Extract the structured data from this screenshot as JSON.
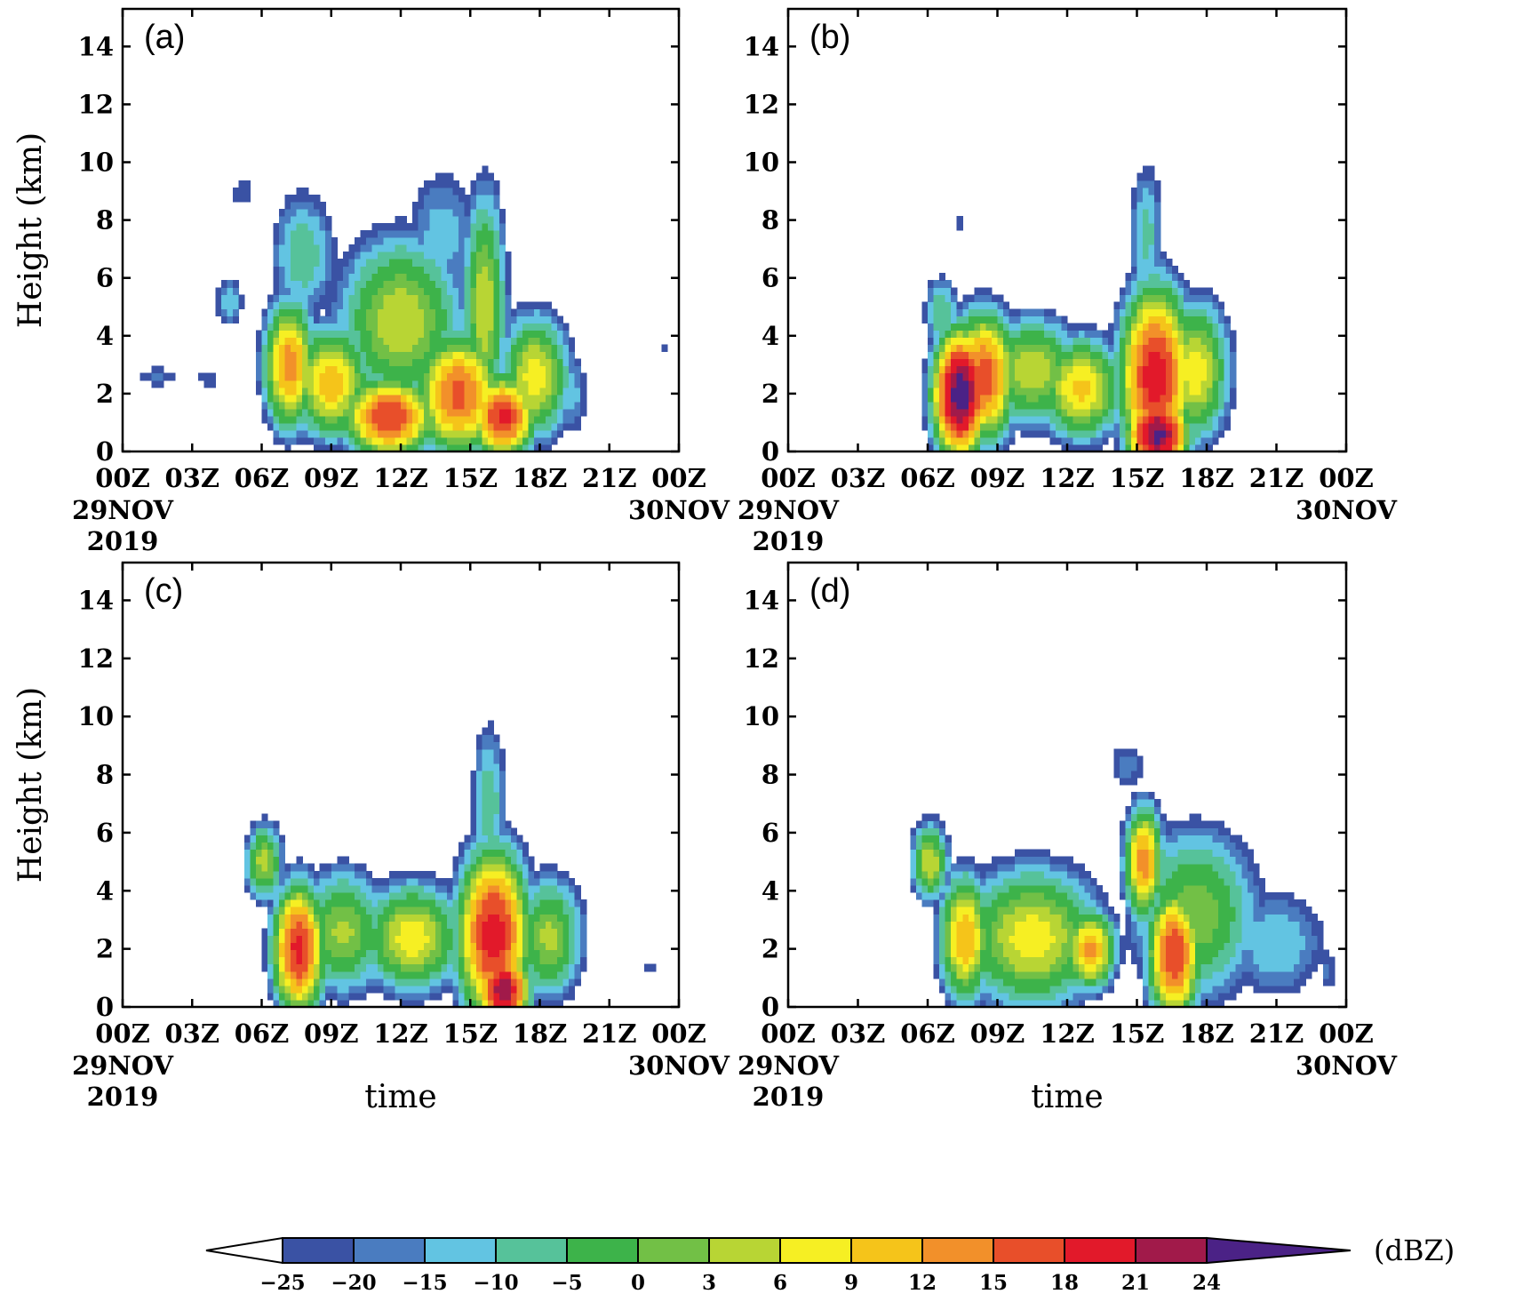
{
  "colors": {
    "levels": [
      "#3a52a4",
      "#4a7cc0",
      "#62c4e2",
      "#56c29a",
      "#3db34a",
      "#72c046",
      "#b8d534",
      "#f6ef23",
      "#f5c41a",
      "#f2902a",
      "#e84f2a",
      "#e2192a",
      "#a11a4a",
      "#4b2286"
    ],
    "below_min": "#ffffff"
  },
  "colorbar": {
    "ticks": [
      "−25",
      "−20",
      "−15",
      "−10",
      "−5",
      "0",
      "3",
      "6",
      "9",
      "12",
      "15",
      "18",
      "21",
      "24"
    ],
    "unit": "(dBZ)"
  },
  "chart_data": [
    {
      "panel": "(a)",
      "type": "heatmap",
      "ylabel": "Height (km)",
      "xlabel": "",
      "x_ticks": [
        "00Z",
        "03Z",
        "06Z",
        "09Z",
        "12Z",
        "15Z",
        "18Z",
        "21Z",
        "00Z"
      ],
      "x_subticks": [
        "29NOV\n2019",
        "30NOV"
      ],
      "y_ticks": [
        "0",
        "2",
        "4",
        "6",
        "8",
        "10",
        "12",
        "14"
      ],
      "ylim": [
        0,
        15.3
      ],
      "xlim_hours": [
        0,
        24
      ],
      "blobs": [
        {
          "t": 1.5,
          "z": 2.6,
          "st": 0.9,
          "sz": 0.35,
          "v": -18
        },
        {
          "t": 3.7,
          "z": 2.5,
          "st": 0.8,
          "sz": 0.35,
          "v": -22
        },
        {
          "t": 4.6,
          "z": 5.2,
          "st": 0.5,
          "sz": 0.7,
          "v": -10
        },
        {
          "t": 5.2,
          "z": 9.0,
          "st": 0.6,
          "sz": 0.7,
          "v": -20
        },
        {
          "t": 7.2,
          "z": 3.0,
          "st": 0.8,
          "sz": 1.6,
          "v": 14
        },
        {
          "t": 7.8,
          "z": 6.8,
          "st": 1.1,
          "sz": 1.8,
          "v": -6
        },
        {
          "t": 9.0,
          "z": 2.4,
          "st": 1.2,
          "sz": 1.4,
          "v": 11
        },
        {
          "t": 11.5,
          "z": 1.2,
          "st": 1.4,
          "sz": 1.0,
          "v": 18
        },
        {
          "t": 12.0,
          "z": 4.5,
          "st": 2.0,
          "sz": 2.2,
          "v": 6
        },
        {
          "t": 13.8,
          "z": 7.5,
          "st": 1.4,
          "sz": 2.0,
          "v": -12
        },
        {
          "t": 14.5,
          "z": 2.0,
          "st": 1.3,
          "sz": 1.5,
          "v": 16
        },
        {
          "t": 15.6,
          "z": 5.0,
          "st": 0.7,
          "sz": 3.0,
          "v": 6
        },
        {
          "t": 16.4,
          "z": 1.2,
          "st": 1.0,
          "sz": 1.0,
          "v": 19
        },
        {
          "t": 17.8,
          "z": 2.6,
          "st": 1.1,
          "sz": 1.6,
          "v": 8
        },
        {
          "t": 19.3,
          "z": 2.0,
          "st": 0.7,
          "sz": 1.3,
          "v": -12
        },
        {
          "t": 23.3,
          "z": 3.6,
          "st": 0.15,
          "sz": 0.3,
          "v": -20
        }
      ]
    },
    {
      "panel": "(b)",
      "type": "heatmap",
      "ylabel": "",
      "xlabel": "",
      "x_ticks": [
        "00Z",
        "03Z",
        "06Z",
        "09Z",
        "12Z",
        "15Z",
        "18Z",
        "21Z",
        "00Z"
      ],
      "x_subticks": [
        "29NOV\n2019",
        "30NOV"
      ],
      "y_ticks": [
        "0",
        "2",
        "4",
        "6",
        "8",
        "10",
        "12",
        "14"
      ],
      "ylim": [
        0,
        15.3
      ],
      "xlim_hours": [
        0,
        24
      ],
      "blobs": [
        {
          "t": 6.6,
          "z": 4.8,
          "st": 0.6,
          "sz": 1.0,
          "v": -5
        },
        {
          "t": 7.4,
          "z": 2.0,
          "st": 0.8,
          "sz": 1.5,
          "v": 26
        },
        {
          "t": 8.4,
          "z": 2.6,
          "st": 1.0,
          "sz": 1.6,
          "v": 17
        },
        {
          "t": 10.5,
          "z": 2.8,
          "st": 1.5,
          "sz": 1.4,
          "v": 6
        },
        {
          "t": 12.6,
          "z": 2.2,
          "st": 1.3,
          "sz": 1.3,
          "v": 10
        },
        {
          "t": 15.4,
          "z": 7.5,
          "st": 0.6,
          "sz": 2.0,
          "v": -8
        },
        {
          "t": 15.8,
          "z": 2.6,
          "st": 1.1,
          "sz": 2.2,
          "v": 20
        },
        {
          "t": 15.9,
          "z": 0.6,
          "st": 0.9,
          "sz": 0.9,
          "v": 25
        },
        {
          "t": 17.5,
          "z": 2.8,
          "st": 1.1,
          "sz": 1.8,
          "v": 8
        },
        {
          "t": 7.3,
          "z": 7.9,
          "st": 0.2,
          "sz": 0.5,
          "v": -20
        }
      ]
    },
    {
      "panel": "(c)",
      "type": "heatmap",
      "ylabel": "Height (km)",
      "xlabel": "time",
      "x_ticks": [
        "00Z",
        "03Z",
        "06Z",
        "09Z",
        "12Z",
        "15Z",
        "18Z",
        "21Z",
        "00Z"
      ],
      "x_subticks": [
        "29NOV\n2019",
        "30NOV"
      ],
      "y_ticks": [
        "0",
        "2",
        "4",
        "6",
        "8",
        "10",
        "12",
        "14"
      ],
      "ylim": [
        0,
        15.3
      ],
      "xlim_hours": [
        0,
        24
      ],
      "blobs": [
        {
          "t": 6.1,
          "z": 5.0,
          "st": 0.6,
          "sz": 1.0,
          "v": 5
        },
        {
          "t": 7.6,
          "z": 2.0,
          "st": 0.8,
          "sz": 1.6,
          "v": 19
        },
        {
          "t": 9.5,
          "z": 2.6,
          "st": 1.4,
          "sz": 1.6,
          "v": 4
        },
        {
          "t": 12.5,
          "z": 2.4,
          "st": 1.6,
          "sz": 1.4,
          "v": 8
        },
        {
          "t": 15.8,
          "z": 7.0,
          "st": 0.6,
          "sz": 2.2,
          "v": -6
        },
        {
          "t": 16.0,
          "z": 2.5,
          "st": 1.1,
          "sz": 2.1,
          "v": 20
        },
        {
          "t": 16.4,
          "z": 0.6,
          "st": 0.8,
          "sz": 0.9,
          "v": 23
        },
        {
          "t": 18.4,
          "z": 2.4,
          "st": 1.1,
          "sz": 1.6,
          "v": 4
        },
        {
          "t": 22.8,
          "z": 1.3,
          "st": 0.3,
          "sz": 0.3,
          "v": -20
        }
      ]
    },
    {
      "panel": "(d)",
      "type": "heatmap",
      "ylabel": "",
      "xlabel": "time",
      "x_ticks": [
        "00Z",
        "03Z",
        "06Z",
        "09Z",
        "12Z",
        "15Z",
        "18Z",
        "21Z",
        "00Z"
      ],
      "x_subticks": [
        "29NOV\n2019",
        "30NOV"
      ],
      "y_ticks": [
        "0",
        "2",
        "4",
        "6",
        "8",
        "10",
        "12",
        "14"
      ],
      "ylim": [
        0,
        15.3
      ],
      "xlim_hours": [
        0,
        24
      ],
      "blobs": [
        {
          "t": 6.1,
          "z": 5.0,
          "st": 0.6,
          "sz": 1.0,
          "v": 6
        },
        {
          "t": 7.6,
          "z": 2.4,
          "st": 0.8,
          "sz": 1.6,
          "v": 12
        },
        {
          "t": 10.5,
          "z": 2.4,
          "st": 2.2,
          "sz": 1.8,
          "v": 8
        },
        {
          "t": 13.0,
          "z": 2.0,
          "st": 0.8,
          "sz": 1.0,
          "v": 13
        },
        {
          "t": 14.6,
          "z": 8.3,
          "st": 0.9,
          "sz": 0.9,
          "v": -18
        },
        {
          "t": 15.3,
          "z": 5.0,
          "st": 0.6,
          "sz": 1.4,
          "v": 14
        },
        {
          "t": 16.6,
          "z": 1.8,
          "st": 0.8,
          "sz": 1.6,
          "v": 18
        },
        {
          "t": 17.5,
          "z": 3.2,
          "st": 2.0,
          "sz": 2.2,
          "v": 3
        },
        {
          "t": 21.0,
          "z": 2.2,
          "st": 1.8,
          "sz": 1.6,
          "v": -10
        },
        {
          "t": 23.2,
          "z": 1.3,
          "st": 0.4,
          "sz": 0.8,
          "v": -18
        }
      ]
    }
  ]
}
